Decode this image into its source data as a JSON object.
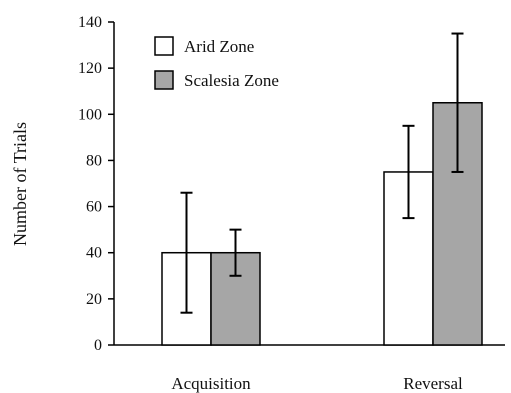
{
  "chart_data": {
    "type": "bar",
    "title": "",
    "xlabel": "",
    "ylabel": "Number of Trials",
    "ylim": [
      0,
      140
    ],
    "yticks": [
      0,
      20,
      40,
      60,
      80,
      100,
      120,
      140
    ],
    "categories": [
      "Acquisition",
      "Reversal"
    ],
    "series": [
      {
        "name": "Arid Zone",
        "color": "#ffffff",
        "values": [
          40,
          75
        ],
        "error_low": [
          14,
          55
        ],
        "error_high": [
          66,
          95
        ]
      },
      {
        "name": "Scalesia Zone",
        "color": "#a6a6a6",
        "values": [
          40,
          105
        ],
        "error_low": [
          30,
          75
        ],
        "error_high": [
          50,
          135
        ]
      }
    ],
    "legend_position": "top-left",
    "grid": false
  }
}
